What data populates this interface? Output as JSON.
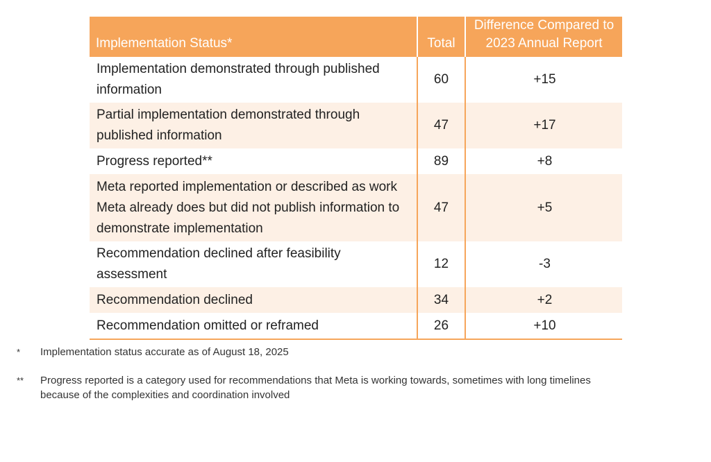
{
  "table": {
    "headers": {
      "status": "Implementation Status*",
      "total": "Total",
      "difference": "Difference Compared to 2023 Annual Report"
    },
    "rows": [
      {
        "status": "Implementation demonstrated through published information",
        "total": "60",
        "difference": "+15"
      },
      {
        "status": "Partial implementation demonstrated through published information",
        "total": "47",
        "difference": "+17"
      },
      {
        "status": "Progress reported**",
        "total": "89",
        "difference": "+8"
      },
      {
        "status": "Meta reported implementation or described as work Meta already does but did not publish information to demonstrate implementation",
        "total": "47",
        "difference": "+5"
      },
      {
        "status": "Recommendation declined after feasibility assessment",
        "total": "12",
        "difference": "-3"
      },
      {
        "status": "Recommendation declined",
        "total": "34",
        "difference": "+2"
      },
      {
        "status": "Recommendation omitted or reframed",
        "total": "26",
        "difference": "+10"
      }
    ]
  },
  "footnotes": [
    {
      "mark": "*",
      "text": "Implementation status accurate as of August 18, 2025"
    },
    {
      "mark": "**",
      "text": "Progress reported is a category used for recommendations that Meta is working towards, sometimes with long timelines because of the complexities and coordination involved"
    }
  ],
  "colors": {
    "header_bg": "#f6a55a",
    "row_shade": "#fdf0e5",
    "divider": "#f6a55a"
  }
}
